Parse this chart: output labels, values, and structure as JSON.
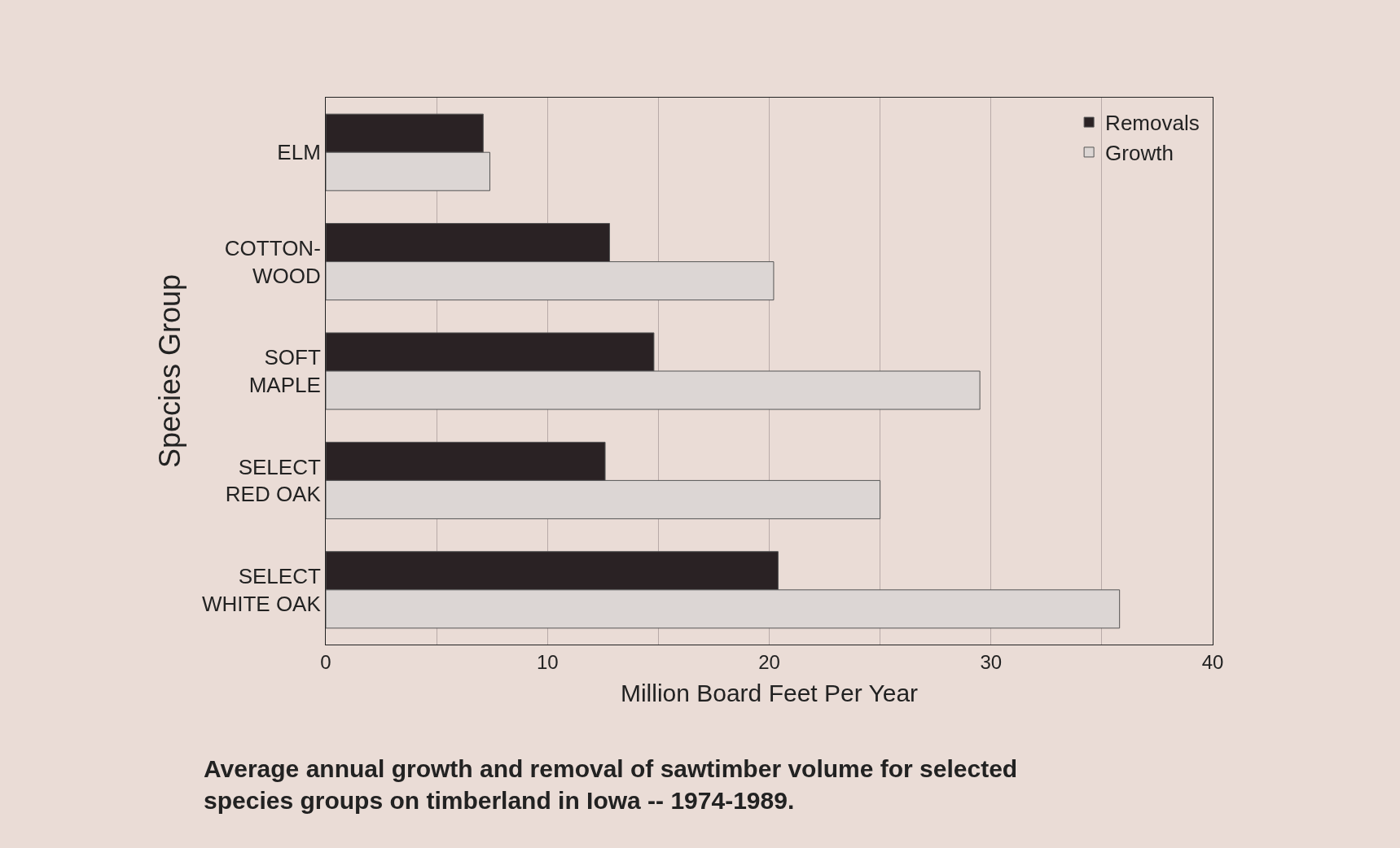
{
  "chart_data": {
    "type": "bar",
    "orientation": "horizontal",
    "xlabel": "Million Board Feet Per Year",
    "ylabel": "Species Group",
    "categories": [
      "ELM",
      "COTTON-\nWOOD",
      "SOFT\nMAPLE",
      "SELECT\nRED OAK",
      "SELECT\nWHITE OAK"
    ],
    "series": [
      {
        "name": "Removals",
        "color": "#2a2224",
        "values": [
          7.1,
          12.8,
          14.8,
          12.6,
          20.4
        ]
      },
      {
        "name": "Growth",
        "color": "#dcd6d4",
        "values": [
          7.4,
          20.2,
          29.5,
          25.0,
          35.8
        ]
      }
    ],
    "xlim": [
      0,
      40
    ],
    "xticks": [
      0,
      {
        "value": 5,
        "label": null
      },
      10,
      {
        "value": 15,
        "label": null
      },
      20,
      {
        "value": 25,
        "label": null
      },
      30,
      {
        "value": 35,
        "label": null
      },
      40
    ],
    "grid": "x",
    "legend": "top right",
    "annotations": [
      "Average annual growth and removal of sawtimber volume for selected\nspecies groups on timberland in Iowa -- 1974-1989."
    ]
  }
}
